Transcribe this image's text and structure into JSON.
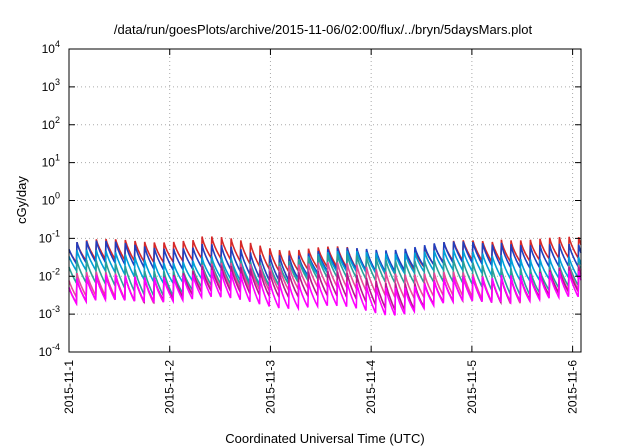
{
  "chart_data": {
    "type": "line",
    "title": "/data/run/goesPlots/archive/2015-11-06/02:00/flux/../bryn/5daysMars.plot",
    "xlabel": "Coordinated Universal Time (UTC)",
    "ylabel": "cGy/day",
    "yscale": "log",
    "ylim": [
      0.0001,
      10000
    ],
    "xlim": [
      "2015-11-01 00:00",
      "2015-11-06 02:00"
    ],
    "grid": true,
    "y_ticks": [
      {
        "base": "10",
        "exp": "4",
        "value": 10000
      },
      {
        "base": "10",
        "exp": "3",
        "value": 1000
      },
      {
        "base": "10",
        "exp": "2",
        "value": 100
      },
      {
        "base": "10",
        "exp": "1",
        "value": 10
      },
      {
        "base": "10",
        "exp": "0",
        "value": 1
      },
      {
        "base": "10",
        "exp": "-1",
        "value": 0.1
      },
      {
        "base": "10",
        "exp": "-2",
        "value": 0.01
      },
      {
        "base": "10",
        "exp": "-3",
        "value": 0.001
      },
      {
        "base": "10",
        "exp": "-4",
        "value": 0.0001
      }
    ],
    "x_ticks": [
      {
        "label": "2015-11-1",
        "day": 0
      },
      {
        "label": "2015-11-2",
        "day": 1
      },
      {
        "label": "2015-11-3",
        "day": 2
      },
      {
        "label": "2015-11-4",
        "day": 3
      },
      {
        "label": "2015-11-5",
        "day": 4
      },
      {
        "label": "2015-11-6",
        "day": 5
      }
    ],
    "series_pattern": {
      "description": "sawtooth: sharp rise every ~2.3 hours followed by decay",
      "period_hours": 2.3
    },
    "series": [
      {
        "color": "#d62728",
        "peak": 0.08,
        "trough": 0.02
      },
      {
        "color": "#1f3fbf",
        "peak": 0.065,
        "trough": 0.015
      },
      {
        "color": "#00a0d8",
        "peak": 0.04,
        "trough": 0.01
      },
      {
        "color": "#2aa198",
        "peak": 0.028,
        "trough": 0.006
      },
      {
        "color": "#e84a9a",
        "peak": 0.018,
        "trough": 0.0035
      },
      {
        "color": "#b8168c",
        "peak": 0.013,
        "trough": 0.0025
      },
      {
        "color": "#ff00ff",
        "peak": 0.01,
        "trough": 0.0018
      }
    ]
  }
}
